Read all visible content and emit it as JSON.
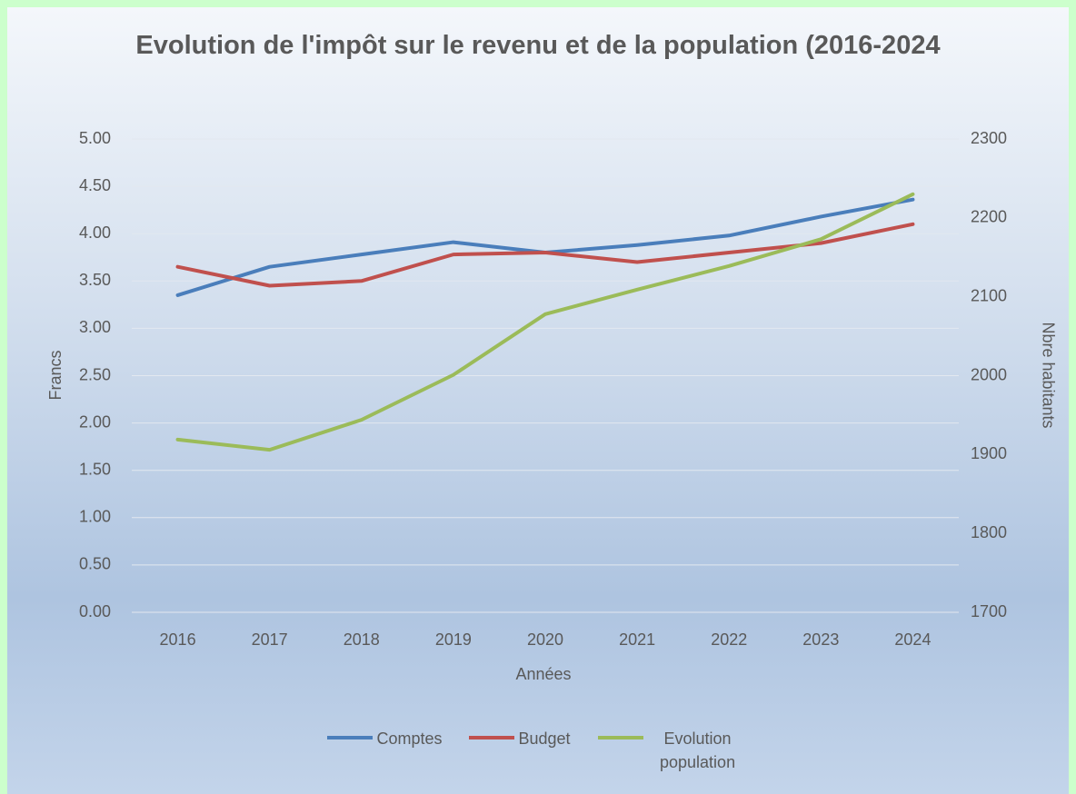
{
  "chart_data": {
    "type": "line",
    "title": "Evolution de l'impôt sur le revenu et de la population (2016-2024",
    "xlabel": "Années",
    "ylabel": "Francs",
    "y2label": "Nbre habitants",
    "categories": [
      "2016",
      "2017",
      "2018",
      "2019",
      "2020",
      "2021",
      "2022",
      "2023",
      "2024"
    ],
    "series": [
      {
        "name": "Comptes",
        "color": "#4a7ebb",
        "values": [
          3.35,
          3.65,
          3.78,
          3.91,
          3.8,
          3.88,
          3.98,
          4.18,
          4.36
        ]
      },
      {
        "name": "Budget",
        "color": "#c0504d",
        "values": [
          3.65,
          3.45,
          3.5,
          3.78,
          3.8,
          3.7,
          3.8,
          3.9,
          4.1
        ]
      },
      {
        "name": "Evolution population",
        "color": "#9bbb59",
        "axis": "y2",
        "values": [
          1919,
          1906,
          1944,
          2001,
          2078,
          2109,
          2139,
          2173,
          2230
        ]
      }
    ],
    "ylim": [
      0,
      5
    ],
    "yticks": [
      {
        "value": 0,
        "label": "0.00"
      },
      {
        "value": 0.5,
        "label": "0.50"
      },
      {
        "value": 1,
        "label": "1.00"
      },
      {
        "value": 1.5,
        "label": "1.50"
      },
      {
        "value": 2,
        "label": "2.00"
      },
      {
        "value": 2.5,
        "label": "2.50"
      },
      {
        "value": 3,
        "label": "3.00"
      },
      {
        "value": 3.5,
        "label": "3.50"
      },
      {
        "value": 4,
        "label": "4.00"
      },
      {
        "value": 4.5,
        "label": "4.50"
      },
      {
        "value": 5,
        "label": "5.00"
      }
    ],
    "y2lim": [
      1700,
      2300
    ],
    "y2ticks": [
      1700,
      1800,
      1900,
      2000,
      2100,
      2200,
      2300
    ],
    "grid": true,
    "legend": "bottom"
  }
}
